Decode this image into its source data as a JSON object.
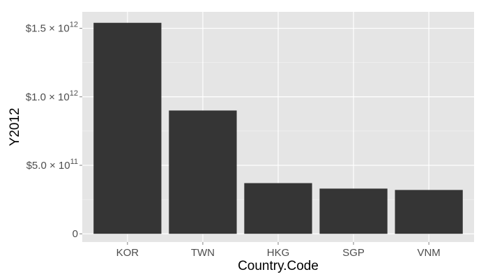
{
  "chart_data": {
    "type": "bar",
    "title": "",
    "xlabel": "Country.Code",
    "ylabel": "Y2012",
    "categories": [
      "KOR",
      "TWN",
      "HKG",
      "SGP",
      "VNM"
    ],
    "values": [
      1540000000000.0,
      900000000000.0,
      370000000000.0,
      330000000000.0,
      320000000000.0
    ],
    "ylim": [
      -60000000000.0,
      1620000000000.0
    ],
    "y_ticks": [
      {
        "value": 0,
        "mantissa": "0",
        "exponent": ""
      },
      {
        "value": 500000000000.0,
        "mantissa": "$5.0 × 10",
        "exponent": "11"
      },
      {
        "value": 1000000000000.0,
        "mantissa": "$1.0 × 10",
        "exponent": "12"
      },
      {
        "value": 1500000000000.0,
        "mantissa": "$1.5 × 10",
        "exponent": "12"
      }
    ],
    "grid": true,
    "colors": {
      "panel": "#e5e5e5",
      "grid_major": "#ffffff",
      "grid_minor": "#f2f2f2",
      "bar": "#353535",
      "tick": "#7f7f7f"
    }
  }
}
